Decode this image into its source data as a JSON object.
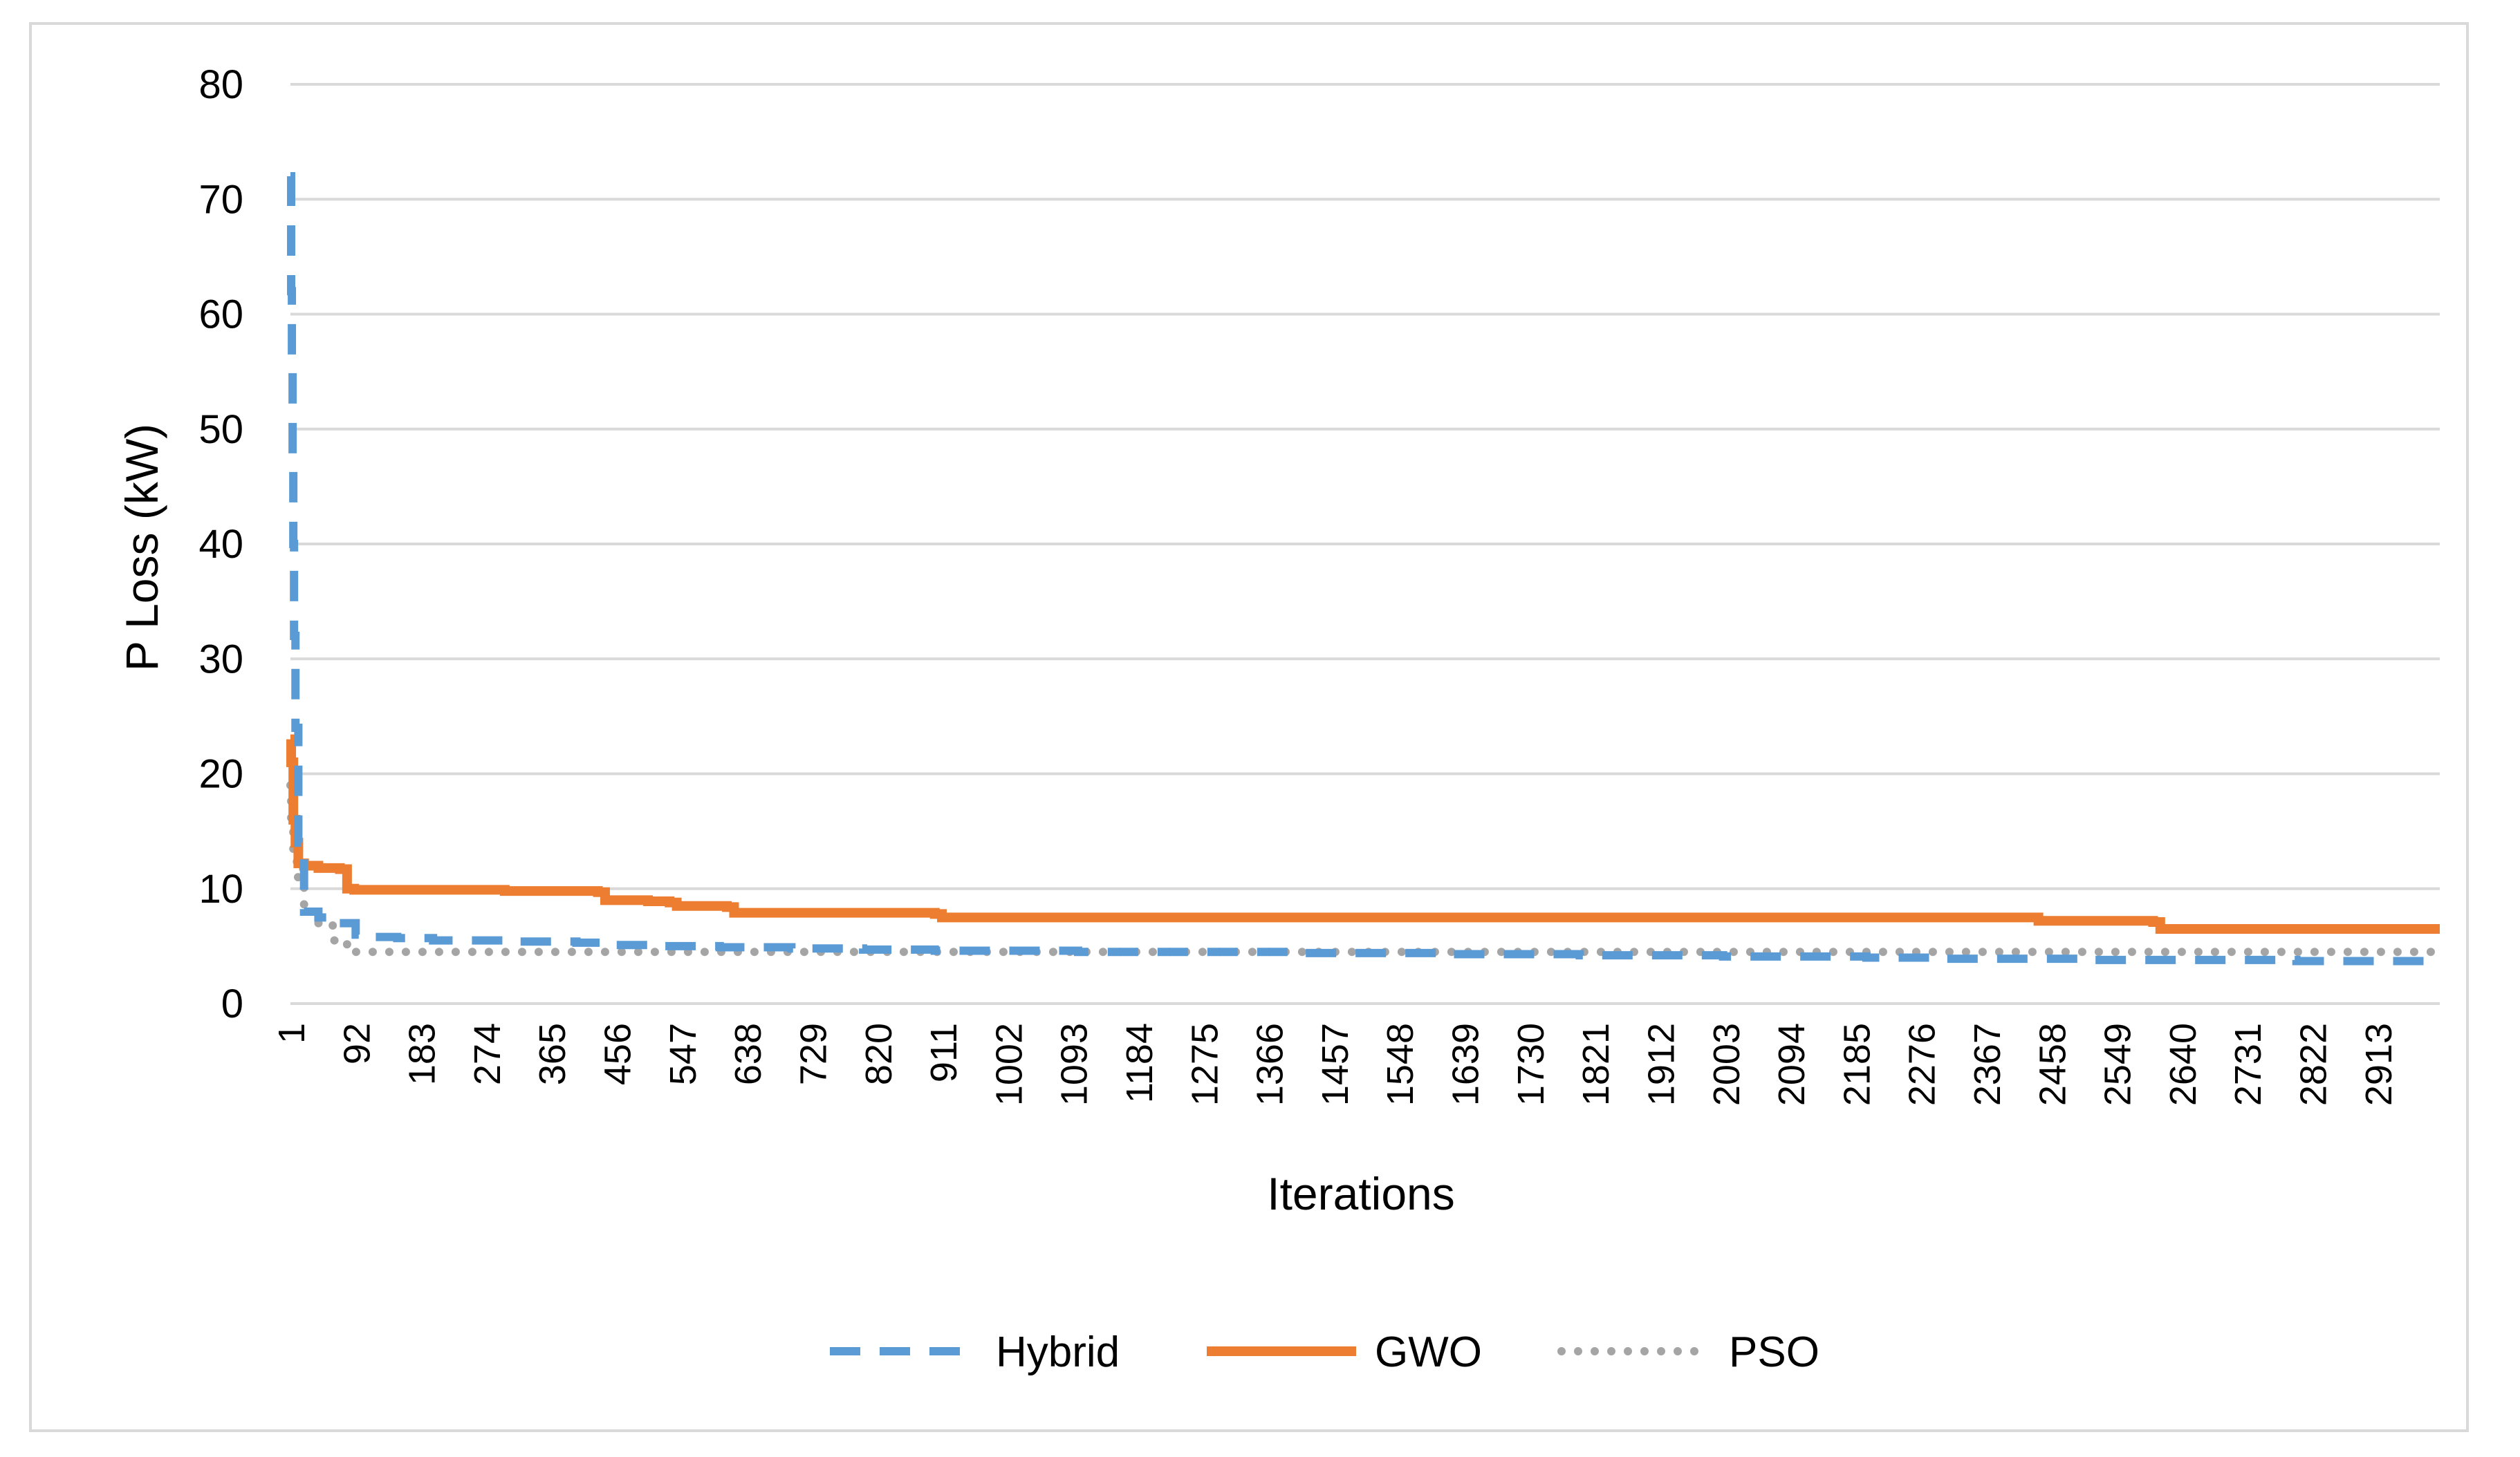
{
  "chart_data": {
    "type": "line",
    "title": "",
    "xlabel": "Iterations",
    "ylabel": "P Loss (kW)",
    "ylim": [
      0,
      80
    ],
    "yticks": [
      0,
      10,
      20,
      30,
      40,
      50,
      60,
      70,
      80
    ],
    "xlim": [
      1,
      3000
    ],
    "categories": [
      "1",
      "92",
      "183",
      "274",
      "365",
      "456",
      "547",
      "638",
      "729",
      "820",
      "911",
      "1002",
      "1093",
      "1184",
      "1275",
      "1366",
      "1457",
      "1548",
      "1639",
      "1730",
      "1821",
      "1912",
      "2003",
      "2094",
      "2185",
      "2276",
      "2367",
      "2458",
      "2549",
      "2640",
      "2731",
      "2822",
      "2913"
    ],
    "grid": "horizontal",
    "legend_position": "bottom",
    "series": [
      {
        "name": "Hybrid",
        "color": "#5b9bd5",
        "style": "dashed",
        "x": [
          1,
          2,
          3,
          4,
          5,
          6,
          8,
          12,
          20,
          40,
          60,
          92,
          100,
          150,
          200,
          300,
          400,
          450,
          500,
          600,
          700,
          800,
          900,
          1000,
          1100,
          1200,
          1300,
          1400,
          1500,
          1600,
          1700,
          1800,
          1900,
          2000,
          2100,
          2200,
          2300,
          2400,
          2500,
          2600,
          2700,
          2800,
          2900,
          3000
        ],
        "y": [
          72,
          62,
          55,
          47,
          40,
          32,
          24,
          14,
          8,
          7.5,
          7,
          6,
          5.8,
          5.7,
          5.5,
          5.4,
          5.3,
          5.1,
          5.0,
          4.9,
          4.8,
          4.7,
          4.6,
          4.6,
          4.5,
          4.5,
          4.5,
          4.4,
          4.4,
          4.3,
          4.3,
          4.2,
          4.2,
          4.1,
          4.1,
          4.0,
          3.9,
          3.9,
          3.8,
          3.8,
          3.8,
          3.7,
          3.7,
          3.6
        ]
      },
      {
        "name": "GWO",
        "color": "#ed7d31",
        "style": "solid",
        "x": [
          1,
          2,
          5,
          8,
          12,
          20,
          40,
          70,
          80,
          90,
          200,
          300,
          430,
          440,
          500,
          530,
          540,
          610,
          620,
          900,
          910,
          2430,
          2440,
          2600,
          2610,
          3000
        ],
        "y": [
          23,
          21,
          16,
          14,
          12.2,
          12,
          11.8,
          11.7,
          10,
          9.9,
          9.9,
          9.8,
          9.7,
          9.0,
          8.9,
          8.8,
          8.5,
          8.4,
          7.9,
          7.8,
          7.5,
          7.5,
          7.2,
          7.1,
          6.5,
          6.5
        ]
      },
      {
        "name": "PSO",
        "color": "#a5a5a5",
        "style": "dotted",
        "x": [
          1,
          2,
          5,
          10,
          20,
          40,
          60,
          80,
          92,
          200,
          500,
          1000,
          2000,
          3000
        ],
        "y": [
          19,
          16,
          13,
          11,
          8,
          7,
          5.5,
          4.6,
          4.5,
          4.5,
          4.5,
          4.5,
          4.5,
          4.5
        ]
      }
    ]
  }
}
